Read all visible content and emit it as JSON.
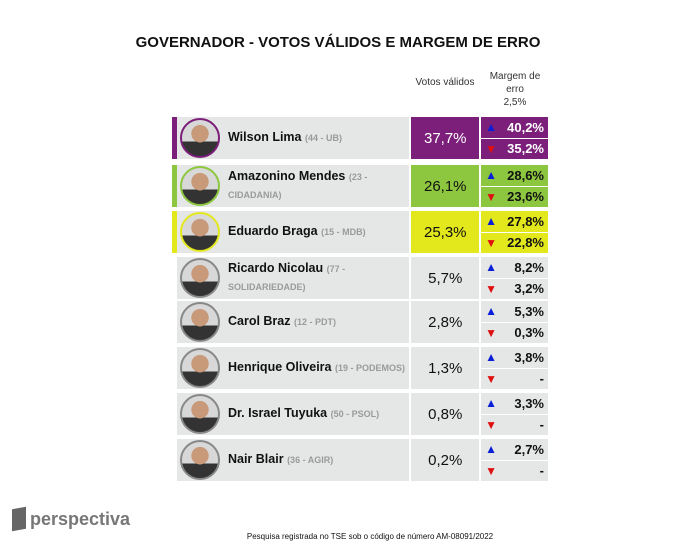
{
  "title": "GOVERNADOR - VOTOS VÁLIDOS E MARGEM DE ERRO",
  "headers": {
    "votes": "Votos válidos",
    "margin": "Margem de erro",
    "margin_value": "2,5%"
  },
  "colors": {
    "purple": "#7b1f7a",
    "green": "#8dc63f",
    "yellow": "#e3e81c"
  },
  "candidates": [
    {
      "name": "Wilson Lima",
      "party": "(44 - UB)",
      "votes": "37,7%",
      "high": "40,2%",
      "low": "35,2%",
      "color": "#7b1f7a",
      "text": "#fff"
    },
    {
      "name": "Amazonino Mendes",
      "party": "(23 - CIDADANIA)",
      "votes": "26,1%",
      "high": "28,6%",
      "low": "23,6%",
      "color": "#8dc63f",
      "text": "#111"
    },
    {
      "name": "Eduardo Braga",
      "party": "(15 - MDB)",
      "votes": "25,3%",
      "high": "27,8%",
      "low": "22,8%",
      "color": "#e3e81c",
      "text": "#111"
    },
    {
      "name": "Ricardo Nicolau",
      "party": "(77 - SOLIDARIEDADE)",
      "votes": "5,7%",
      "high": "8,2%",
      "low": "3,2%"
    },
    {
      "name": "Carol Braz",
      "party": "(12 - PDT)",
      "votes": "2,8%",
      "high": "5,3%",
      "low": "0,3%"
    },
    {
      "name": "Henrique Oliveira",
      "party": "(19 - PODEMOS)",
      "votes": "1,3%",
      "high": "3,8%",
      "low": "-"
    },
    {
      "name": "Dr. Israel Tuyuka",
      "party": "(50 - PSOL)",
      "votes": "0,8%",
      "high": "3,3%",
      "low": "-"
    },
    {
      "name": "Nair Blair",
      "party": "(36 - AGIR)",
      "votes": "0,2%",
      "high": "2,7%",
      "low": "-"
    }
  ],
  "arrows": {
    "up": "▲",
    "down": "▼"
  },
  "logo": "perspectiva",
  "footer": "Pesquisa registrada no TSE sob o código de número AM-08091/2022"
}
